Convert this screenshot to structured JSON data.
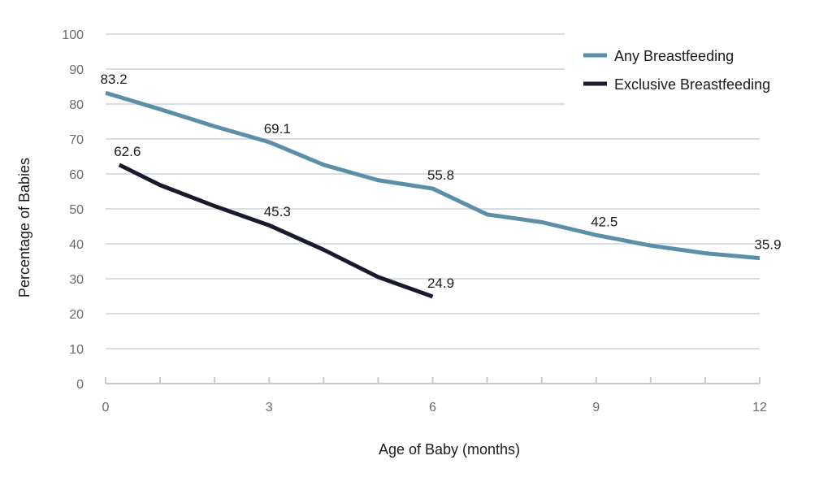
{
  "chart_data": {
    "type": "line",
    "title": "",
    "xlabel": "Age of Baby (months)",
    "ylabel": "Percentage of Babies",
    "x": [
      0,
      1,
      2,
      3,
      4,
      5,
      6,
      7,
      8,
      9,
      10,
      11,
      12
    ],
    "xticks": [
      0,
      3,
      6,
      9,
      12
    ],
    "yticks": [
      0,
      10,
      20,
      30,
      40,
      50,
      60,
      70,
      80,
      90,
      100
    ],
    "xlim": [
      0,
      12
    ],
    "ylim": [
      0,
      100
    ],
    "grid": true,
    "legend_position": "top-right",
    "series": [
      {
        "name": "Any Breastfeeding",
        "color": "#5b8fa8",
        "x": [
          0,
          1,
          2,
          3,
          4,
          5,
          6,
          7,
          8,
          9,
          10,
          11,
          12
        ],
        "values": [
          83.2,
          78.5,
          73.6,
          69.1,
          62.6,
          58.2,
          55.8,
          48.4,
          46.2,
          42.5,
          39.5,
          37.3,
          35.9
        ],
        "labels": [
          {
            "x": 0,
            "value": 83.2,
            "text": "83.2"
          },
          {
            "x": 3,
            "value": 69.1,
            "text": "69.1"
          },
          {
            "x": 6,
            "value": 55.8,
            "text": "55.8"
          },
          {
            "x": 9,
            "value": 42.5,
            "text": "42.5"
          },
          {
            "x": 12,
            "value": 35.9,
            "text": "35.9"
          }
        ]
      },
      {
        "name": "Exclusive Breastfeeding",
        "color": "#1a1a2e",
        "x": [
          0.25,
          1,
          2,
          3,
          4,
          5,
          6
        ],
        "values": [
          62.6,
          56.8,
          50.8,
          45.3,
          38.3,
          30.5,
          24.9
        ],
        "labels": [
          {
            "x": 0.25,
            "value": 62.6,
            "text": "62.6"
          },
          {
            "x": 3,
            "value": 45.3,
            "text": "45.3"
          },
          {
            "x": 6,
            "value": 24.9,
            "text": "24.9"
          }
        ]
      }
    ]
  },
  "colors": {
    "grid": "#d7dfe2",
    "axis": "#c5cacd"
  }
}
